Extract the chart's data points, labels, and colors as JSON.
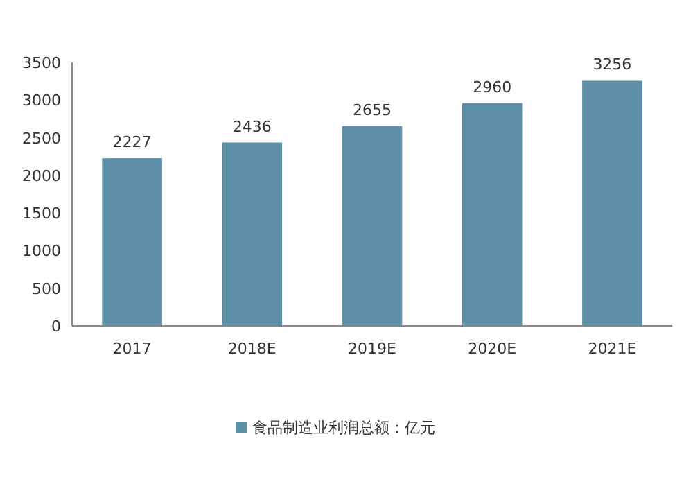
{
  "chart_data": {
    "type": "bar",
    "categories": [
      "2017",
      "2018E",
      "2019E",
      "2020E",
      "2021E"
    ],
    "series": [
      {
        "name": "食品制造业利润总额：亿元",
        "color": "#5e8fa8",
        "values": [
          2227,
          2436,
          2655,
          2960,
          3256
        ]
      }
    ],
    "ylim": [
      0,
      3500
    ],
    "yticks": [
      0,
      500,
      1000,
      1500,
      2000,
      2500,
      3000,
      3500
    ],
    "data_labels": true,
    "legend": "bottom",
    "grid": false
  }
}
